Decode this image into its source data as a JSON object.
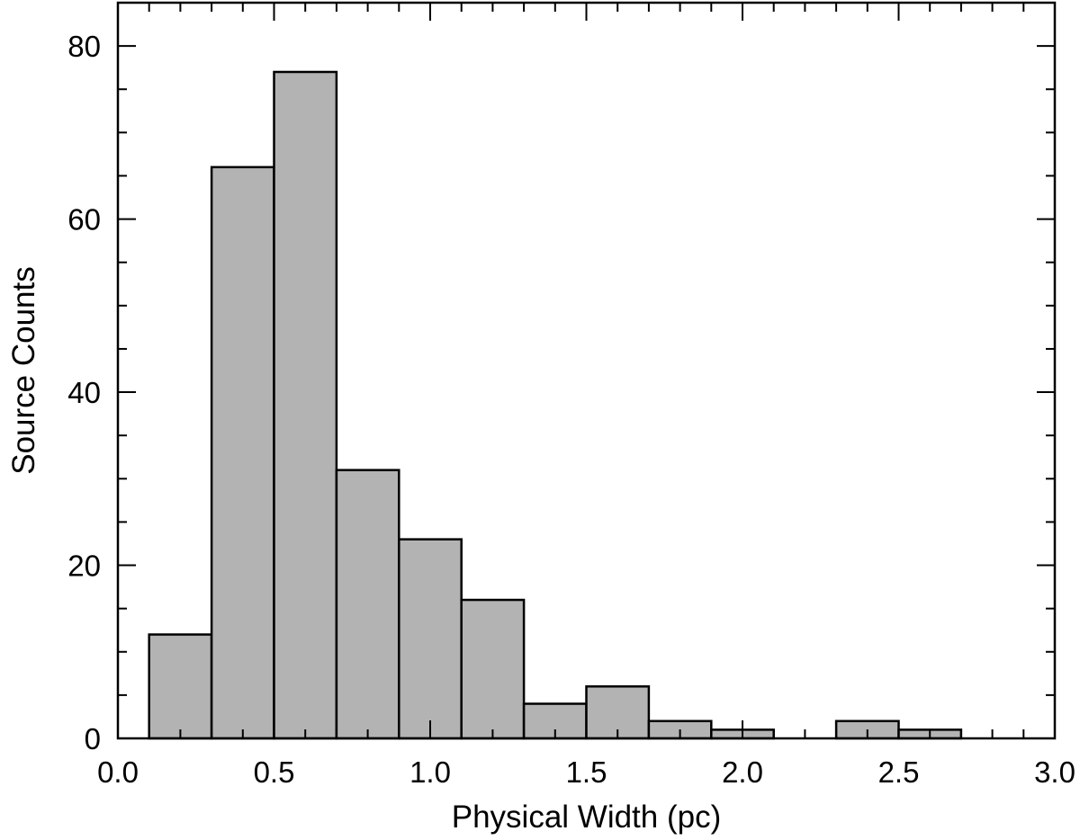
{
  "chart_data": {
    "type": "bar",
    "title": "",
    "xlabel": "Physical Width (pc)",
    "ylabel": "Source Counts",
    "xlim": [
      0.0,
      3.0
    ],
    "ylim": [
      0,
      85
    ],
    "bar_color": "#b3b3b3",
    "edge_color": "#000000",
    "x_tick_labels": [
      "0.0",
      "0.5",
      "1.0",
      "1.5",
      "2.0",
      "2.5",
      "3.0"
    ],
    "y_tick_labels": [
      "0",
      "20",
      "40",
      "60",
      "80"
    ],
    "bin_edges": [
      0.1,
      0.3,
      0.5,
      0.7,
      0.9,
      1.1,
      1.3,
      1.5,
      1.7,
      1.9,
      2.1,
      2.3,
      2.5,
      2.7
    ],
    "values": [
      12,
      66,
      77,
      31,
      23,
      16,
      4,
      6,
      2,
      1,
      0,
      2,
      1
    ],
    "grid": false,
    "legend": "none"
  }
}
